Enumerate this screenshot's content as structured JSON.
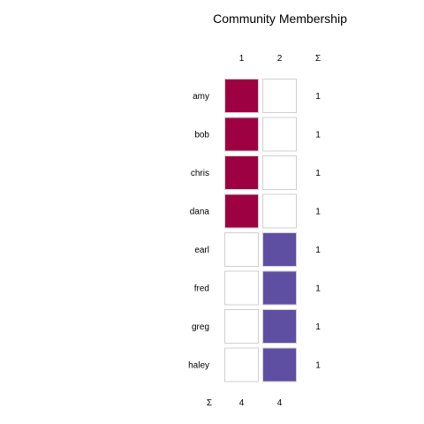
{
  "chart_data": {
    "type": "heatmap",
    "title": "Community Membership",
    "columns": [
      "1",
      "2"
    ],
    "rows": [
      "amy",
      "bob",
      "chris",
      "dana",
      "earl",
      "fred",
      "greg",
      "haley"
    ],
    "matrix": [
      [
        1,
        0
      ],
      [
        1,
        0
      ],
      [
        1,
        0
      ],
      [
        1,
        0
      ],
      [
        0,
        1
      ],
      [
        0,
        1
      ],
      [
        0,
        1
      ],
      [
        0,
        1
      ]
    ],
    "row_sums": [
      "1",
      "1",
      "1",
      "1",
      "1",
      "1",
      "1",
      "1"
    ],
    "col_sums": [
      "4",
      "4"
    ],
    "sum_symbol": "Σ",
    "colors": {
      "community_1": "#9e0142",
      "community_2": "#5e4fa2",
      "empty": "#ffffff",
      "cell_border": "#d0d0d0"
    }
  }
}
